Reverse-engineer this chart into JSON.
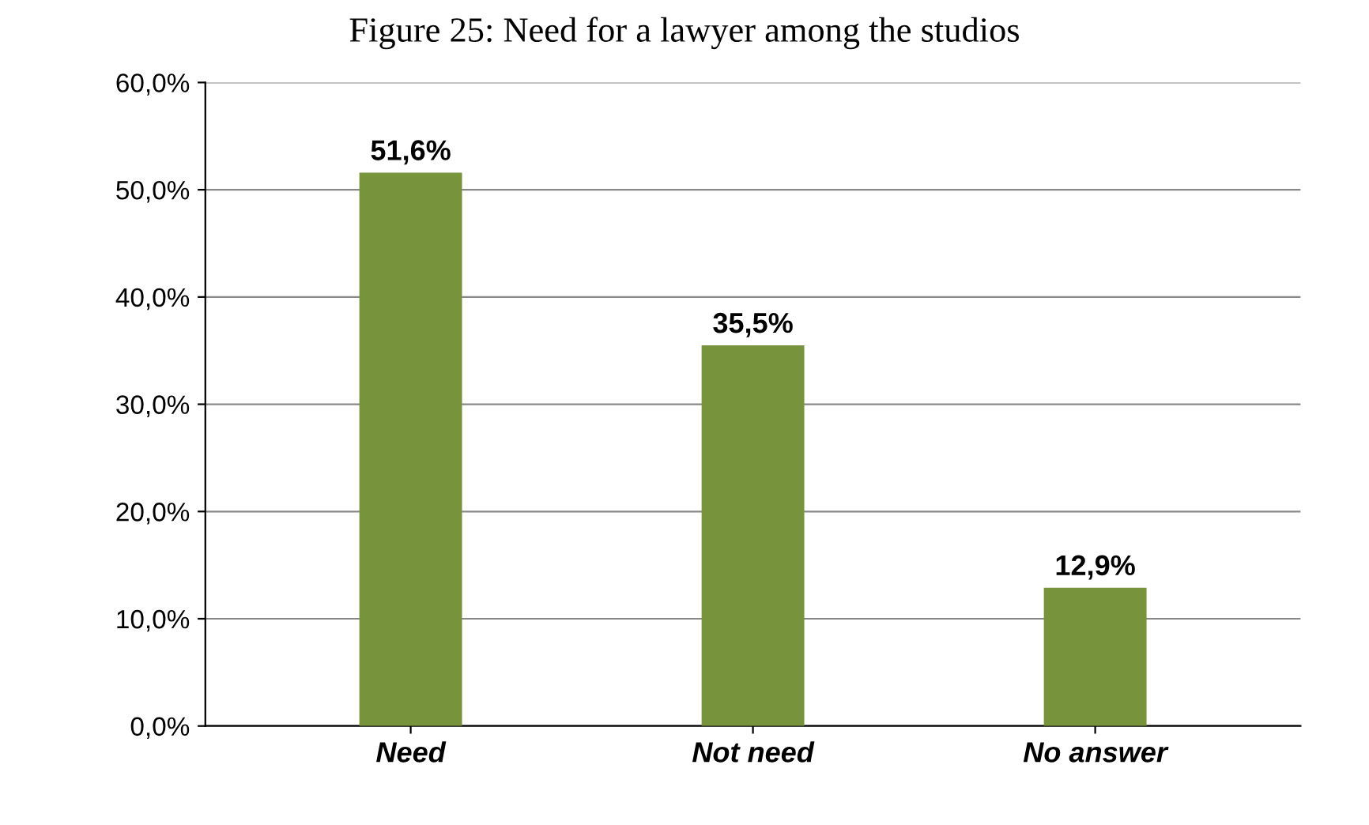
{
  "chart_data": {
    "type": "bar",
    "title": "Figure 25: Need for a lawyer among the studios",
    "categories": [
      "Need",
      "Not need",
      "No answer"
    ],
    "values": [
      51.6,
      35.5,
      12.9
    ],
    "value_labels": [
      "51,6%",
      "35,5%",
      "12,9%"
    ],
    "color": "#77933c",
    "ylim": [
      0,
      60
    ],
    "yticks": [
      {
        "value": 0,
        "label": "0,0%"
      },
      {
        "value": 10,
        "label": "10,0%"
      },
      {
        "value": 20,
        "label": "20,0%"
      },
      {
        "value": 30,
        "label": "30,0%"
      },
      {
        "value": 40,
        "label": "40,0%"
      },
      {
        "value": 50,
        "label": "50,0%"
      },
      {
        "value": 60,
        "label": "60,0%"
      }
    ],
    "grid": "y"
  }
}
